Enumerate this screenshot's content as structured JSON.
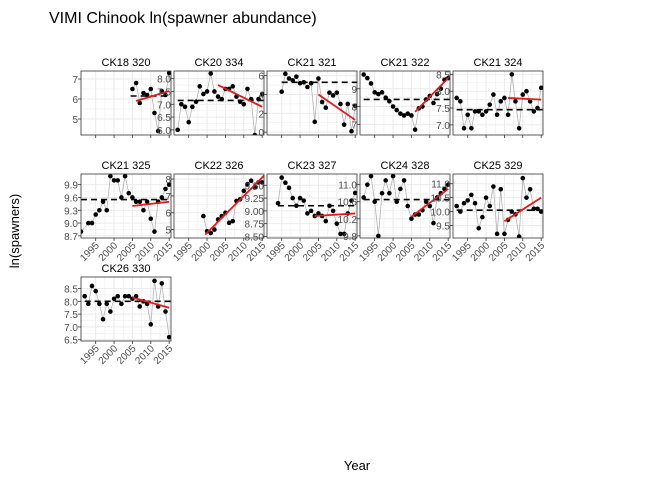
{
  "figure": {
    "title": "VIMI Chinook ln(spawner abundance)",
    "xlabel": "Year",
    "ylabel": "ln(spawners)"
  },
  "colors": {
    "point": "#000000",
    "connector": "#b3b3b3",
    "grid": "#ebebeb",
    "panel_border": "#333333",
    "mean_line": "#000000",
    "trend_line": "#e31a1c",
    "text": "#000000",
    "tick_text": "#4d4d4d"
  },
  "chart_data": {
    "type": "scatter",
    "xlim": [
      1991,
      2015.5
    ],
    "x_ticks": [
      1995,
      2000,
      2005,
      2010,
      2015
    ],
    "x_tick_labels": [
      "1995",
      "2000",
      "2005",
      "2010",
      "2015"
    ],
    "grid": true,
    "panels": [
      {
        "name": "CK18 320",
        "ylim": [
          4.2,
          7.4
        ],
        "y_ticks": [
          5,
          6,
          7
        ],
        "x": [
          2005,
          2006,
          2007,
          2008,
          2009,
          2010,
          2011,
          2012,
          2013,
          2014,
          2015
        ],
        "y": [
          6.5,
          6.8,
          5.8,
          6.3,
          6.2,
          6.5,
          5.3,
          4.4,
          6.4,
          6.2,
          7.3
        ],
        "mean": {
          "x": [
            2004.5,
            2015.5
          ],
          "y": 6.15
        },
        "trend": {
          "x": [
            2006,
            2015
          ],
          "y": [
            5.9,
            6.4
          ]
        }
      },
      {
        "name": "CK20 334",
        "ylim": [
          5.8,
          8.3
        ],
        "y_ticks": [
          6.0,
          6.5,
          7.0,
          7.5,
          8.0
        ],
        "x": [
          1992,
          1993,
          1994,
          1995,
          1996,
          1997,
          1998,
          1999,
          2000,
          2001,
          2002,
          2003,
          2004,
          2005,
          2006,
          2007,
          2008,
          2009,
          2010,
          2011,
          2012,
          2013,
          2014,
          2015
        ],
        "y": [
          6.0,
          7.0,
          6.9,
          6.3,
          6.9,
          7.1,
          7.7,
          7.4,
          7.5,
          8.2,
          7.5,
          7.3,
          7.2,
          7.6,
          7.6,
          7.7,
          7.3,
          7.1,
          7.0,
          7.6,
          7.2,
          5.8,
          7.2,
          7.4
        ],
        "mean": {
          "x": [
            1992,
            2015.5
          ],
          "y": 7.15
        },
        "trend": {
          "x": [
            2003,
            2015
          ],
          "y": [
            7.75,
            6.9
          ]
        }
      },
      {
        "name": "CK21 321",
        "ylim": [
          -0.3,
          6.5
        ],
        "y_ticks": [
          0,
          2,
          4,
          6
        ],
        "x": [
          1995,
          1996,
          1997,
          1998,
          1999,
          2000,
          2001,
          2002,
          2003,
          2004,
          2005,
          2006,
          2007,
          2008,
          2009,
          2010,
          2011,
          2012,
          2013,
          2014,
          2015
        ],
        "y": [
          4.3,
          6.2,
          5.7,
          5.5,
          5.9,
          5.2,
          5.3,
          4.8,
          5.2,
          1.1,
          5.7,
          3.2,
          2.6,
          4.2,
          3.9,
          4.2,
          3.0,
          0.8,
          3.0,
          0.1,
          2.8
        ],
        "mean": {
          "x": [
            1995,
            2015.5
          ],
          "y": 5.3
        },
        "trend": {
          "x": [
            2005,
            2015
          ],
          "y": [
            4.0,
            1.3
          ]
        }
      },
      {
        "name": "CK21 322",
        "ylim": [
          6.4,
          10.0
        ],
        "y_ticks": [
          7,
          8,
          9
        ],
        "x": [
          1992,
          1993,
          1994,
          1995,
          1996,
          1997,
          1998,
          1999,
          2000,
          2001,
          2002,
          2003,
          2004,
          2005,
          2006,
          2007,
          2008,
          2009,
          2010,
          2011,
          2012,
          2013,
          2014,
          2015
        ],
        "y": [
          9.8,
          9.6,
          9.3,
          8.8,
          8.7,
          8.8,
          8.5,
          8.3,
          8.0,
          7.8,
          7.6,
          7.5,
          7.6,
          7.5,
          6.7,
          7.9,
          8.0,
          8.4,
          8.6,
          8.2,
          8.7,
          9.0,
          9.5,
          9.6
        ],
        "mean": {
          "x": [
            1992,
            2015.5
          ],
          "y": 8.4
        },
        "trend": {
          "x": [
            2006,
            2015
          ],
          "y": [
            7.7,
            9.6
          ]
        }
      },
      {
        "name": "CK21 324",
        "ylim": [
          6.7,
          8.6
        ],
        "y_ticks": [
          7.0,
          7.5,
          8.0,
          8.5
        ],
        "x": [
          1992,
          1993,
          1994,
          1995,
          1996,
          1997,
          1998,
          1999,
          2000,
          2001,
          2002,
          2003,
          2004,
          2005,
          2006,
          2007,
          2008,
          2009,
          2010,
          2011,
          2012,
          2013,
          2014,
          2015
        ],
        "y": [
          7.8,
          7.7,
          6.9,
          7.3,
          6.9,
          7.4,
          7.4,
          7.3,
          7.4,
          7.6,
          7.9,
          7.3,
          7.7,
          7.8,
          7.3,
          8.5,
          7.7,
          6.9,
          7.9,
          8.0,
          7.7,
          7.4,
          7.5,
          8.1
        ],
        "mean": {
          "x": [
            1992,
            2015.5
          ],
          "y": 7.45
        },
        "trend": {
          "x": [
            2006,
            2015
          ],
          "y": [
            7.8,
            7.75
          ]
        }
      },
      {
        "name": "CK21 325",
        "ylim": [
          8.65,
          10.15
        ],
        "y_ticks": [
          8.7,
          9.0,
          9.3,
          9.6,
          9.9
        ],
        "x": [
          1991,
          1993,
          1994,
          1995,
          1996,
          1997,
          1998,
          1999,
          2000,
          2001,
          2002,
          2003,
          2004,
          2005,
          2006,
          2007,
          2008,
          2009,
          2010,
          2011,
          2012,
          2013,
          2014,
          2015
        ],
        "y": [
          8.8,
          9.0,
          9.0,
          9.2,
          9.3,
          9.5,
          9.3,
          10.1,
          10.0,
          10.0,
          9.6,
          10.1,
          9.7,
          9.6,
          9.5,
          9.5,
          9.3,
          9.5,
          9.1,
          8.8,
          9.5,
          9.6,
          9.8,
          9.9
        ],
        "mean": {
          "x": [
            1991,
            2015.5
          ],
          "y": 9.55
        },
        "trend": {
          "x": [
            2005,
            2015
          ],
          "y": [
            9.4,
            9.5
          ]
        }
      },
      {
        "name": "CK22 326",
        "ylim": [
          4.5,
          8.3
        ],
        "y_ticks": [
          5,
          6,
          7,
          8
        ],
        "x": [
          1999,
          2000,
          2001,
          2002,
          2003,
          2004,
          2005,
          2006,
          2007,
          2008,
          2009,
          2010,
          2011,
          2012,
          2013,
          2014,
          2015
        ],
        "y": [
          5.8,
          4.9,
          4.8,
          5.0,
          5.6,
          5.8,
          6.0,
          5.4,
          5.5,
          6.7,
          6.8,
          7.3,
          7.7,
          7.9,
          7.5,
          7.8,
          7.8
        ],
        "mean": {
          "x": [
            1999,
            2015.5
          ],
          "y": null
        },
        "trend": {
          "x": [
            1999.5,
            2015.5
          ],
          "y": [
            4.7,
            8.2
          ]
        }
      },
      {
        "name": "CK23 327",
        "ylim": [
          8.47,
          9.72
        ],
        "y_ticks": [
          8.5,
          8.75,
          9.0,
          9.25,
          9.5
        ],
        "x": [
          1994,
          1995,
          1996,
          1997,
          1998,
          1999,
          2000,
          2001,
          2002,
          2003,
          2004,
          2005,
          2006,
          2007,
          2008,
          2009,
          2010,
          2011,
          2012,
          2013,
          2014,
          2015
        ],
        "y": [
          9.15,
          9.65,
          9.55,
          9.45,
          9.25,
          9.1,
          9.25,
          9.2,
          8.95,
          9.0,
          8.9,
          8.95,
          8.9,
          8.8,
          9.1,
          9.0,
          8.75,
          8.55,
          8.55,
          8.95,
          9.2,
          9.35
        ],
        "mean": {
          "x": [
            1994,
            2015.5
          ],
          "y": 9.1
        },
        "trend": {
          "x": [
            2004,
            2015
          ],
          "y": [
            8.9,
            8.95
          ]
        }
      },
      {
        "name": "CK24 328",
        "ylim": [
          9.75,
          11.25
        ],
        "y_ticks": [
          9.8,
          10.2,
          10.6,
          11.0
        ],
        "x": [
          1992,
          1993,
          1994,
          1995,
          1996,
          1997,
          1998,
          1999,
          2000,
          2001,
          2002,
          2003,
          2004,
          2005,
          2006,
          2007,
          2008,
          2009,
          2010,
          2011,
          2012,
          2013,
          2014,
          2015
        ],
        "y": [
          10.7,
          11.0,
          11.2,
          10.6,
          9.8,
          10.8,
          11.1,
          10.8,
          11.2,
          10.6,
          10.9,
          11.1,
          10.5,
          10.2,
          10.3,
          10.3,
          10.4,
          10.6,
          10.5,
          10.1,
          10.7,
          10.8,
          10.9,
          11.0
        ],
        "mean": {
          "x": [
            1992,
            2015.5
          ],
          "y": 10.65
        },
        "trend": {
          "x": [
            2005,
            2015
          ],
          "y": [
            10.25,
            10.9
          ]
        }
      },
      {
        "name": "CK25 329",
        "ylim": [
          9.05,
          11.35
        ],
        "y_ticks": [
          9.5,
          10.0,
          10.5,
          11.0
        ],
        "x": [
          1992,
          1993,
          1994,
          1995,
          1996,
          1997,
          1998,
          1999,
          2000,
          2001,
          2002,
          2003,
          2004,
          2005,
          2006,
          2007,
          2008,
          2009,
          2010,
          2011,
          2012,
          2013,
          2014,
          2015
        ],
        "y": [
          10.2,
          10.0,
          10.3,
          10.4,
          10.6,
          10.3,
          9.4,
          9.8,
          10.5,
          10.2,
          10.9,
          9.2,
          10.8,
          9.2,
          9.7,
          10.0,
          9.9,
          9.1,
          11.2,
          10.5,
          10.8,
          10.1,
          10.1,
          10.0
        ],
        "mean": {
          "x": [
            1992,
            2015.5
          ],
          "y": 10.05
        },
        "trend": {
          "x": [
            2005,
            2015
          ],
          "y": [
            9.65,
            10.5
          ]
        }
      },
      {
        "name": "CK26 330",
        "ylim": [
          6.45,
          8.95
        ],
        "y_ticks": [
          6.5,
          7.0,
          7.5,
          8.0,
          8.5
        ],
        "x": [
          1992,
          1993,
          1994,
          1995,
          1996,
          1997,
          1998,
          1999,
          2000,
          2001,
          2002,
          2003,
          2004,
          2005,
          2006,
          2007,
          2008,
          2009,
          2010,
          2011,
          2012,
          2013,
          2014,
          2015
        ],
        "y": [
          8.2,
          7.9,
          8.6,
          8.4,
          7.9,
          7.3,
          7.9,
          7.6,
          8.1,
          8.2,
          7.9,
          8.2,
          8.2,
          8.1,
          8.2,
          7.8,
          8.0,
          7.9,
          7.1,
          8.8,
          7.8,
          8.7,
          7.6,
          6.6
        ],
        "mean": {
          "x": [
            1992,
            2015.5
          ],
          "y": 8.0
        },
        "trend": {
          "x": [
            2005,
            2015
          ],
          "y": [
            8.15,
            7.75
          ]
        }
      }
    ]
  }
}
